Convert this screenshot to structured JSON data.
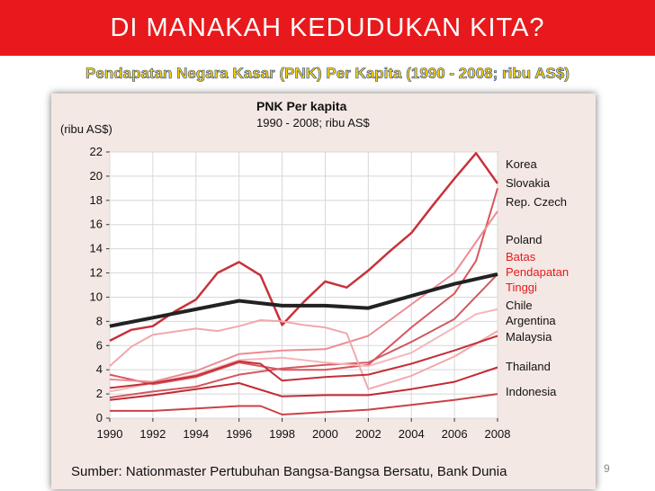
{
  "slide": {
    "title": "DI MANAKAH KEDUDUKAN KITA?",
    "subtitle": "Pendapatan Negara Kasar (PNK) Per Kapita (1990 - 2008; ribu AS$)",
    "source": "Sumber: Nationmaster Pertubuhan Bangsa-Bangsa Bersatu, Bank Dunia",
    "page_number": "9"
  },
  "colors": {
    "title_bar": "#e8191c",
    "subtitle_fill": "#ffd200",
    "subtitle_outline": "#1a3f9a",
    "threshold": "#222222",
    "threshold_label": "#e8191c"
  },
  "chart_data": {
    "type": "line",
    "title": "PNK Per kapita",
    "subtitle": "1990 - 2008; ribu AS$",
    "ylabel": "(ribu AS$)",
    "xlabel": "",
    "ylim": [
      0,
      22
    ],
    "xlim": [
      1990,
      2008
    ],
    "grid": true,
    "legend_placement": "right",
    "x_ticks": [
      "1990",
      "1992",
      "1994",
      "1996",
      "1998",
      "2000",
      "2002",
      "2004",
      "2006",
      "2008"
    ],
    "y_ticks": [
      "0",
      "2",
      "4",
      "6",
      "8",
      "10",
      "12",
      "14",
      "16",
      "18",
      "20",
      "22"
    ],
    "series": [
      {
        "name": "Korea",
        "color": "#c8323a",
        "width": 2.5,
        "points": [
          [
            1990,
            6.4
          ],
          [
            1991,
            7.3
          ],
          [
            1992,
            7.6
          ],
          [
            1993,
            8.8
          ],
          [
            1994,
            9.8
          ],
          [
            1995,
            12.0
          ],
          [
            1996,
            12.9
          ],
          [
            1997,
            11.8
          ],
          [
            1998,
            7.7
          ],
          [
            1999,
            9.6
          ],
          [
            2000,
            11.3
          ],
          [
            2001,
            10.8
          ],
          [
            2002,
            12.2
          ],
          [
            2003,
            13.8
          ],
          [
            2004,
            15.3
          ],
          [
            2005,
            17.6
          ],
          [
            2006,
            19.8
          ],
          [
            2007,
            21.9
          ],
          [
            2008,
            19.4
          ]
        ]
      },
      {
        "name": "Slovakia",
        "color": "#d8555e",
        "width": 2,
        "points": [
          [
            1990,
            3.6
          ],
          [
            1992,
            2.8
          ],
          [
            1994,
            3.4
          ],
          [
            1996,
            4.6
          ],
          [
            1998,
            4.0
          ],
          [
            2000,
            4.0
          ],
          [
            2002,
            4.4
          ],
          [
            2004,
            7.5
          ],
          [
            2006,
            10.3
          ],
          [
            2007,
            13.0
          ],
          [
            2008,
            19.0
          ]
        ]
      },
      {
        "name": "Rep. Czech",
        "color": "#ec8c92",
        "width": 2,
        "points": [
          [
            1990,
            3.2
          ],
          [
            1992,
            3.0
          ],
          [
            1994,
            3.9
          ],
          [
            1996,
            5.3
          ],
          [
            1998,
            5.6
          ],
          [
            2000,
            5.7
          ],
          [
            2002,
            6.8
          ],
          [
            2004,
            9.4
          ],
          [
            2006,
            12.0
          ],
          [
            2008,
            17.1
          ]
        ]
      },
      {
        "name": "Poland",
        "color": "#d05a62",
        "width": 2,
        "points": [
          [
            1990,
            1.7
          ],
          [
            1992,
            2.2
          ],
          [
            1994,
            2.6
          ],
          [
            1996,
            3.6
          ],
          [
            1998,
            4.1
          ],
          [
            2000,
            4.4
          ],
          [
            2002,
            4.6
          ],
          [
            2004,
            6.3
          ],
          [
            2006,
            8.2
          ],
          [
            2008,
            11.9
          ]
        ]
      },
      {
        "name": "Batas Pendapatan Tinggi",
        "color": "#222222",
        "width": 4,
        "points": [
          [
            1990,
            7.6
          ],
          [
            1992,
            8.3
          ],
          [
            1994,
            9.0
          ],
          [
            1996,
            9.7
          ],
          [
            1998,
            9.3
          ],
          [
            2000,
            9.3
          ],
          [
            2002,
            9.1
          ],
          [
            2004,
            10.1
          ],
          [
            2006,
            11.1
          ],
          [
            2008,
            11.9
          ]
        ]
      },
      {
        "name": "Chile",
        "color": "#f5b6b9",
        "width": 2,
        "points": [
          [
            1990,
            2.2
          ],
          [
            1992,
            2.9
          ],
          [
            1994,
            3.6
          ],
          [
            1996,
            4.8
          ],
          [
            1998,
            5.0
          ],
          [
            2000,
            4.6
          ],
          [
            2002,
            4.3
          ],
          [
            2004,
            5.4
          ],
          [
            2006,
            7.5
          ],
          [
            2007,
            8.6
          ],
          [
            2008,
            9.0
          ]
        ]
      },
      {
        "name": "Argentina",
        "color": "#f0a9ac",
        "width": 2,
        "points": [
          [
            1990,
            4.3
          ],
          [
            1991,
            5.9
          ],
          [
            1992,
            6.9
          ],
          [
            1994,
            7.4
          ],
          [
            1995,
            7.2
          ],
          [
            1996,
            7.6
          ],
          [
            1997,
            8.1
          ],
          [
            1998,
            8.0
          ],
          [
            1999,
            7.7
          ],
          [
            2000,
            7.5
          ],
          [
            2001,
            7.0
          ],
          [
            2002,
            2.4
          ],
          [
            2004,
            3.5
          ],
          [
            2006,
            5.1
          ],
          [
            2008,
            7.2
          ]
        ]
      },
      {
        "name": "Malaysia",
        "color": "#c23038",
        "width": 2,
        "points": [
          [
            1990,
            2.5
          ],
          [
            1992,
            2.9
          ],
          [
            1994,
            3.5
          ],
          [
            1996,
            4.7
          ],
          [
            1997,
            4.5
          ],
          [
            1998,
            3.1
          ],
          [
            2000,
            3.4
          ],
          [
            2002,
            3.6
          ],
          [
            2004,
            4.5
          ],
          [
            2006,
            5.6
          ],
          [
            2008,
            6.8
          ]
        ]
      },
      {
        "name": "Thailand",
        "color": "#c12a32",
        "width": 2,
        "points": [
          [
            1990,
            1.5
          ],
          [
            1992,
            1.9
          ],
          [
            1994,
            2.4
          ],
          [
            1996,
            2.9
          ],
          [
            1998,
            1.8
          ],
          [
            2000,
            1.9
          ],
          [
            2002,
            1.9
          ],
          [
            2004,
            2.4
          ],
          [
            2006,
            3.0
          ],
          [
            2008,
            4.2
          ]
        ]
      },
      {
        "name": "Indonesia",
        "color": "#cc4048",
        "width": 2,
        "points": [
          [
            1990,
            0.6
          ],
          [
            1992,
            0.6
          ],
          [
            1994,
            0.8
          ],
          [
            1996,
            1.0
          ],
          [
            1997,
            1.0
          ],
          [
            1998,
            0.3
          ],
          [
            2000,
            0.5
          ],
          [
            2002,
            0.7
          ],
          [
            2004,
            1.1
          ],
          [
            2006,
            1.5
          ],
          [
            2008,
            2.0
          ]
        ]
      }
    ],
    "legend": [
      {
        "text": "Korea",
        "color": "#111111"
      },
      {
        "text": "Slovakia",
        "color": "#111111"
      },
      {
        "text": "Rep. Czech",
        "color": "#111111"
      },
      {
        "text": "Poland",
        "color": "#111111"
      },
      {
        "text": "Batas",
        "color": "#e8191c"
      },
      {
        "text": "Pendapatan",
        "color": "#e8191c"
      },
      {
        "text": "Tinggi",
        "color": "#e8191c"
      },
      {
        "text": "Chile",
        "color": "#111111"
      },
      {
        "text": "Argentina",
        "color": "#111111"
      },
      {
        "text": "Malaysia",
        "color": "#111111"
      },
      {
        "text": "Thailand",
        "color": "#111111"
      },
      {
        "text": "Indonesia",
        "color": "#111111"
      }
    ]
  }
}
